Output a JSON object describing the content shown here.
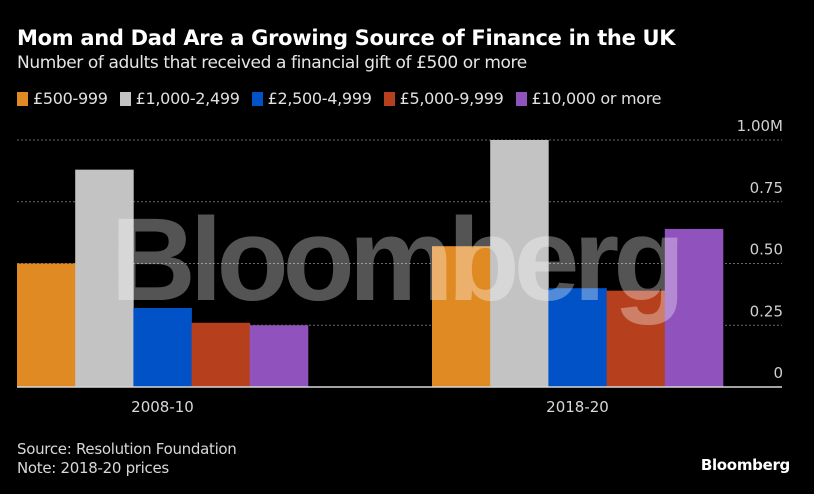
{
  "chart_data": {
    "type": "bar",
    "title": "Mom and Dad Are a Growing Source of Finance in the UK",
    "subtitle": "Number of adults that received a financial gift of £500 or more",
    "categories": [
      "2008-10",
      "2018-20"
    ],
    "series": [
      {
        "name": "£500-999",
        "color": "#e08a24",
        "values": [
          0.5,
          0.57
        ]
      },
      {
        "name": "£1,000-2,499",
        "color": "#c3c3c3",
        "values": [
          0.88,
          1.0
        ]
      },
      {
        "name": "£2,500-4,999",
        "color": "#0152c6",
        "values": [
          0.32,
          0.4
        ]
      },
      {
        "name": "£5,000-9,999",
        "color": "#b6401e",
        "values": [
          0.26,
          0.39
        ]
      },
      {
        "name": "£10,000 or more",
        "color": "#9053be",
        "values": [
          0.25,
          0.64
        ]
      }
    ],
    "ylim": [
      0,
      1.0
    ],
    "yticks": [
      {
        "value": 0,
        "label": "0"
      },
      {
        "value": 0.25,
        "label": "0.25"
      },
      {
        "value": 0.5,
        "label": "0.50"
      },
      {
        "value": 0.75,
        "label": "0.75"
      },
      {
        "value": 1.0,
        "label": "1.00M"
      }
    ],
    "yaxis_position": "right",
    "grid": true,
    "legend_position": "top-left",
    "xlabel": "",
    "ylabel": ""
  },
  "footer": {
    "source": "Source: Resolution Foundation",
    "note": "Note: 2018-20 prices"
  },
  "branding": {
    "logo": "Bloomberg",
    "watermark": "Bloomberg"
  }
}
